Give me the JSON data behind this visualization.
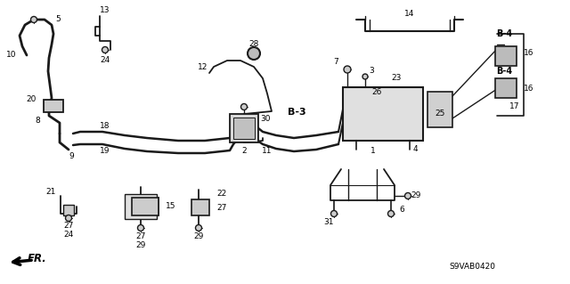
{
  "bg_color": "#ffffff",
  "line_color": "#1a1a1a",
  "text_color": "#000000",
  "fig_width": 6.4,
  "fig_height": 3.19,
  "part_code": "S9VAB0420",
  "b3_label": "B-3",
  "b4_label": "B-4",
  "fr_label": "FR."
}
